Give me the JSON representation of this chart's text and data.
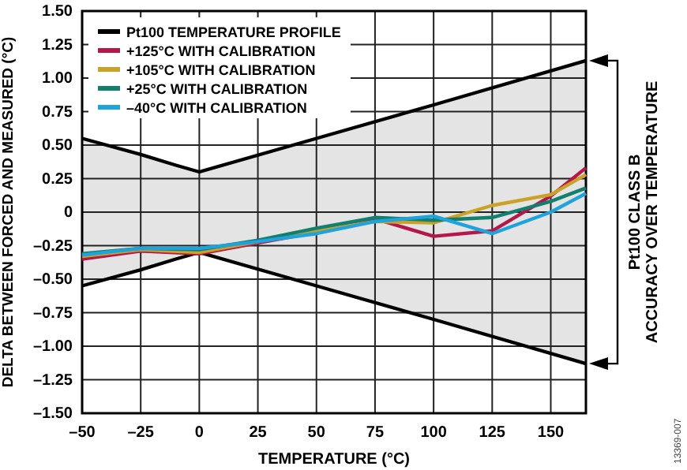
{
  "chart_data": {
    "type": "line",
    "xlabel": "TEMPERATURE (°C)",
    "ylabel": "DELTA BETWEEN FORCED AND MEASURED (°C)",
    "xlim": [
      -50,
      165
    ],
    "xticks": [
      {
        "value": -50,
        "label": "–50"
      },
      {
        "value": -25,
        "label": "–25"
      },
      0,
      25,
      50,
      75,
      100,
      125,
      150
    ],
    "ylim": [
      -1.5,
      1.5
    ],
    "yticks": [
      {
        "value": -1.5,
        "label": "–1.50"
      },
      {
        "value": -1.25,
        "label": "–1.25"
      },
      {
        "value": -1,
        "label": "–1.00"
      },
      {
        "value": -0.75,
        "label": "–0.75"
      },
      {
        "value": -0.5,
        "label": "–0.50"
      },
      {
        "value": -0.25,
        "label": "–0.25"
      },
      0,
      {
        "value": 0.25,
        "label": "0.25"
      },
      {
        "value": 0.5,
        "label": "0.50"
      },
      {
        "value": 0.75,
        "label": "0.75"
      },
      {
        "value": 1,
        "label": "1.00"
      },
      {
        "value": 1.25,
        "label": "1.25"
      },
      {
        "value": 1.5,
        "label": "1.50"
      }
    ],
    "grid": true,
    "legend": "top left",
    "line_style": "solid",
    "series": [
      {
        "name": "Pt100 TEMPERATURE PROFILE",
        "color": "#000000",
        "x": [
          -50,
          -25,
          -10,
          0,
          50,
          100,
          165
        ],
        "values": [
          0.55,
          0.43,
          0.35,
          0.3,
          0.55,
          0.8,
          1.13
        ],
        "lower": [
          -0.55,
          -0.43,
          -0.35,
          -0.3,
          -0.55,
          -0.8,
          -1.13
        ],
        "upper": [
          0.55,
          0.43,
          0.35,
          0.3,
          0.55,
          0.8,
          1.13
        ]
      },
      {
        "color": "#000000",
        "x": [
          -50,
          -25,
          -10,
          0,
          50,
          100,
          165
        ],
        "values": [
          -0.55,
          -0.43,
          -0.35,
          -0.3,
          -0.55,
          -0.8,
          -1.13
        ]
      },
      {
        "name": "+125°C WITH CALIBRATION",
        "color": "#b5174b",
        "x": [
          -50,
          -25,
          0,
          25,
          50,
          75,
          100,
          125,
          150,
          165
        ],
        "values": [
          -0.35,
          -0.29,
          -0.31,
          -0.23,
          -0.15,
          -0.05,
          -0.18,
          -0.14,
          0.12,
          0.33
        ]
      },
      {
        "name": "+105°C WITH CALIBRATION",
        "color": "#c9a227",
        "x": [
          -50,
          -25,
          0,
          25,
          50,
          75,
          100,
          125,
          150,
          165
        ],
        "values": [
          -0.33,
          -0.28,
          -0.3,
          -0.22,
          -0.14,
          -0.07,
          -0.08,
          0.05,
          0.13,
          0.28
        ]
      },
      {
        "name": "+25°C WITH CALIBRATION",
        "color": "#127f6f",
        "x": [
          -50,
          -25,
          0,
          25,
          50,
          75,
          100,
          125,
          150,
          165
        ],
        "values": [
          -0.31,
          -0.27,
          -0.28,
          -0.21,
          -0.12,
          -0.04,
          -0.06,
          -0.04,
          0.08,
          0.18
        ]
      },
      {
        "name": "–40°C WITH CALIBRATION",
        "color": "#1fa3dc",
        "x": [
          -50,
          -25,
          0,
          25,
          50,
          75,
          100,
          125,
          150,
          165
        ],
        "values": [
          -0.32,
          -0.27,
          -0.27,
          -0.22,
          -0.16,
          -0.07,
          -0.03,
          -0.16,
          0.0,
          0.14
        ]
      }
    ],
    "annotations": [
      "Pt100 CLASS B ACCURACY OVER TEMPERATURE",
      "13369-007"
    ]
  }
}
